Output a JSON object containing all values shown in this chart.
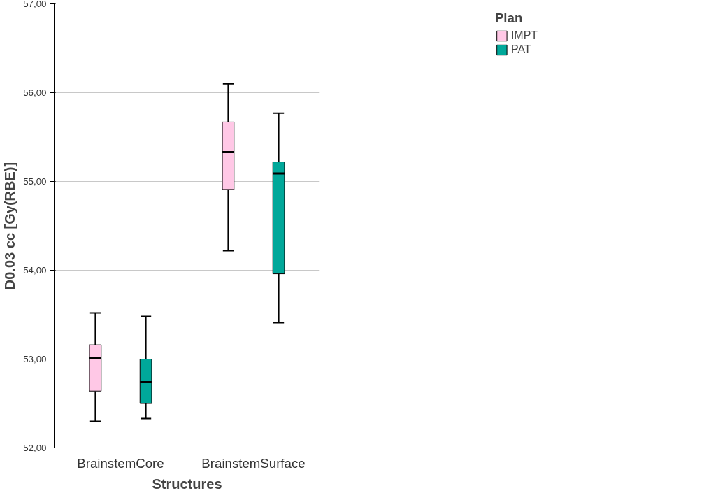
{
  "chart_data": {
    "type": "box",
    "xlabel": "Structures",
    "ylabel": "D0.03 cc [Gy(RBE)]",
    "legend_title": "Plan",
    "legend": "top right",
    "grid": "y",
    "categories": [
      "BrainstemCore",
      "BrainstemSurface"
    ],
    "ylim": [
      52,
      57
    ],
    "yticks": [
      {
        "value": 52,
        "label": "52,00"
      },
      {
        "value": 53,
        "label": "53,00"
      },
      {
        "value": 54,
        "label": "54,00"
      },
      {
        "value": 55,
        "label": "55,00"
      },
      {
        "value": 56,
        "label": "56,00"
      },
      {
        "value": 57,
        "label": "57,00"
      }
    ],
    "series": [
      {
        "name": "IMPT",
        "color": "#ffc8e6",
        "boxes": [
          {
            "low": 52.3,
            "q1": 52.64,
            "median": 53.01,
            "q3": 53.16,
            "high": 53.52
          },
          {
            "low": 54.22,
            "q1": 54.91,
            "median": 55.33,
            "q3": 55.67,
            "high": 56.1
          }
        ]
      },
      {
        "name": "PAT",
        "color": "#00a89a",
        "boxes": [
          {
            "low": 52.33,
            "q1": 52.5,
            "median": 52.74,
            "q3": 53.0,
            "high": 53.48
          },
          {
            "low": 53.41,
            "q1": 53.96,
            "median": 55.09,
            "q3": 55.22,
            "high": 55.77
          }
        ]
      }
    ]
  }
}
